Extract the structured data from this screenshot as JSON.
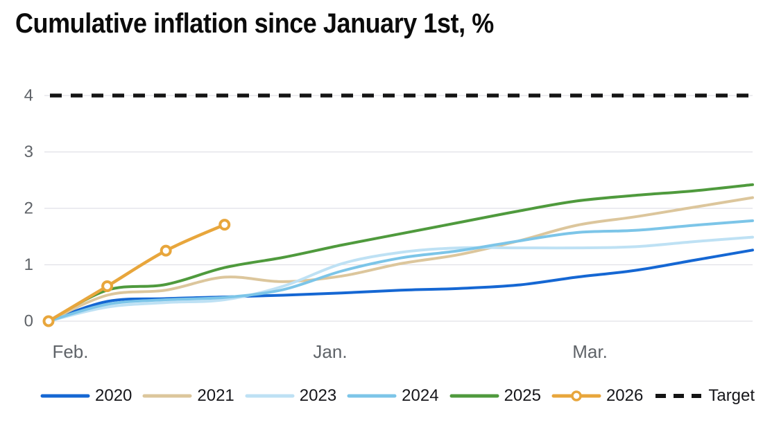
{
  "title": "Cumulative inflation since January 1st, %",
  "colors": {
    "background": "#ffffff",
    "grid": "#e0e0e6",
    "axis_text": "#5f6368",
    "legend_text": "#16161a",
    "title_text": "#0b0b0b",
    "target": "#141414"
  },
  "chart_data": {
    "type": "line",
    "title": "Cumulative inflation since January 1st, %",
    "xlabel": "",
    "ylabel": "",
    "x_unit": "months since January 1st",
    "x_range": [
      0,
      12
    ],
    "ylim": [
      0,
      4.35
    ],
    "yticks": [
      0,
      1,
      2,
      3,
      4
    ],
    "xticks": [
      {
        "label": "Feb.",
        "pos": 0.031
      },
      {
        "label": "Jan.",
        "pos": 0.4
      },
      {
        "label": "Mar.",
        "pos": 0.769
      }
    ],
    "grid": "horizontal",
    "legend_position": "bottom",
    "series": [
      {
        "name": "2020",
        "color": "#1567d3",
        "x": [
          0,
          1,
          2,
          3,
          4,
          5,
          6,
          7,
          8,
          9,
          10,
          11,
          12
        ],
        "values": [
          0,
          0.35,
          0.4,
          0.43,
          0.46,
          0.5,
          0.55,
          0.58,
          0.64,
          0.78,
          0.9,
          1.08,
          1.26
        ]
      },
      {
        "name": "2021",
        "color": "#dcc69c",
        "x": [
          0,
          1,
          2,
          3,
          4,
          5,
          6,
          7,
          8,
          9,
          10,
          11,
          12
        ],
        "values": [
          0,
          0.46,
          0.55,
          0.78,
          0.7,
          0.8,
          1.02,
          1.18,
          1.42,
          1.7,
          1.85,
          2.02,
          2.19
        ]
      },
      {
        "name": "2023",
        "color": "#bee1f4",
        "x": [
          0,
          1,
          2,
          3,
          4,
          5,
          6,
          7,
          8,
          9,
          10,
          11,
          12
        ],
        "values": [
          0,
          0.25,
          0.33,
          0.38,
          0.62,
          1.02,
          1.22,
          1.3,
          1.3,
          1.3,
          1.32,
          1.41,
          1.49
        ]
      },
      {
        "name": "2024",
        "color": "#7cc5e8",
        "x": [
          0,
          1,
          2,
          3,
          4,
          5,
          6,
          7,
          8,
          9,
          10,
          11,
          12
        ],
        "values": [
          0,
          0.3,
          0.38,
          0.42,
          0.56,
          0.89,
          1.12,
          1.25,
          1.42,
          1.57,
          1.61,
          1.7,
          1.78
        ]
      },
      {
        "name": "2025",
        "color": "#4f9a3d",
        "x": [
          0,
          1,
          2,
          3,
          4,
          5,
          6,
          7,
          8,
          9,
          10,
          11,
          12
        ],
        "values": [
          0,
          0.55,
          0.65,
          0.95,
          1.13,
          1.35,
          1.55,
          1.75,
          1.95,
          2.13,
          2.23,
          2.31,
          2.42
        ]
      },
      {
        "name": "2026",
        "color": "#e8a63c",
        "marker": "circle",
        "x": [
          0,
          1,
          2,
          3
        ],
        "values": [
          0,
          0.62,
          1.25,
          1.71
        ]
      },
      {
        "name": "Target",
        "color": "#141414",
        "style": "dashed",
        "value": 4
      }
    ]
  }
}
